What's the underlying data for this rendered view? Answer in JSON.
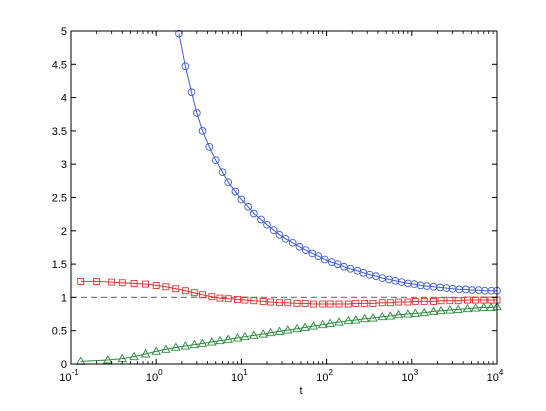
{
  "chart_data": {
    "type": "line",
    "xscale": "log",
    "xlabel": "t",
    "ylabel": "",
    "title": "",
    "xlim": [
      0.1,
      10000
    ],
    "ylim": [
      0,
      5
    ],
    "grid": false,
    "legend": "none",
    "xticks": [
      {
        "value": 0.1,
        "base": "10",
        "exp": "-1"
      },
      {
        "value": 1,
        "base": "10",
        "exp": "0"
      },
      {
        "value": 10,
        "base": "10",
        "exp": "1"
      },
      {
        "value": 100,
        "base": "10",
        "exp": "2"
      },
      {
        "value": 1000,
        "base": "10",
        "exp": "3"
      },
      {
        "value": 10000,
        "base": "10",
        "exp": "4"
      }
    ],
    "yticks": [
      {
        "value": 0,
        "label": "0"
      },
      {
        "value": 0.5,
        "label": "0.5"
      },
      {
        "value": 1,
        "label": "1"
      },
      {
        "value": 1.5,
        "label": "1.5"
      },
      {
        "value": 2,
        "label": "2"
      },
      {
        "value": 2.5,
        "label": "2.5"
      },
      {
        "value": 3,
        "label": "3"
      },
      {
        "value": 3.5,
        "label": "3.5"
      },
      {
        "value": 4,
        "label": "4"
      },
      {
        "value": 4.5,
        "label": "4.5"
      },
      {
        "value": 5,
        "label": "5"
      }
    ],
    "reference_line": {
      "y": 1,
      "color": "#808080",
      "style": "dashed"
    },
    "series": [
      {
        "color": "#3b5bdb",
        "marker": "circle",
        "x": [
          1.85,
          2.2,
          2.6,
          3.0,
          3.5,
          4.2,
          5.0,
          6.0,
          7.0,
          8.5,
          10,
          12,
          14,
          17,
          20,
          24,
          28,
          33,
          40,
          48,
          57,
          68,
          80,
          95,
          115,
          135,
          160,
          190,
          230,
          270,
          320,
          380,
          450,
          540,
          640,
          760,
          900,
          1070,
          1270,
          1500,
          1800,
          2150,
          2550,
          3000,
          3600,
          4300,
          5100,
          6100,
          7200,
          8600,
          10000
        ],
        "y": [
          4.96,
          4.47,
          4.08,
          3.77,
          3.5,
          3.26,
          3.06,
          2.88,
          2.73,
          2.59,
          2.47,
          2.36,
          2.26,
          2.17,
          2.09,
          2.01,
          1.94,
          1.88,
          1.82,
          1.76,
          1.71,
          1.66,
          1.62,
          1.57,
          1.53,
          1.5,
          1.46,
          1.43,
          1.4,
          1.37,
          1.34,
          1.32,
          1.29,
          1.27,
          1.25,
          1.23,
          1.21,
          1.2,
          1.18,
          1.17,
          1.16,
          1.15,
          1.14,
          1.13,
          1.12,
          1.12,
          1.11,
          1.11,
          1.1,
          1.1,
          1.1
        ]
      },
      {
        "color": "#e03131",
        "marker": "square",
        "x": [
          0.13,
          0.2,
          0.3,
          0.4,
          0.55,
          0.75,
          1.0,
          1.3,
          1.7,
          2.2,
          2.8,
          3.5,
          4.5,
          5.6,
          7.0,
          9.0,
          11,
          14,
          18,
          22,
          28,
          35,
          45,
          56,
          70,
          90,
          110,
          140,
          180,
          220,
          280,
          350,
          450,
          560,
          700,
          900,
          1100,
          1400,
          1800,
          2200,
          2800,
          3500,
          4500,
          5600,
          7000,
          8500,
          10000
        ],
        "y": [
          1.24,
          1.24,
          1.23,
          1.22,
          1.21,
          1.2,
          1.18,
          1.16,
          1.13,
          1.1,
          1.07,
          1.04,
          1.01,
          0.99,
          0.98,
          0.97,
          0.96,
          0.95,
          0.94,
          0.93,
          0.92,
          0.92,
          0.91,
          0.91,
          0.9,
          0.9,
          0.9,
          0.9,
          0.9,
          0.91,
          0.91,
          0.91,
          0.92,
          0.92,
          0.93,
          0.93,
          0.94,
          0.94,
          0.94,
          0.95,
          0.95,
          0.95,
          0.96,
          0.96,
          0.96,
          0.96,
          0.96
        ]
      },
      {
        "color": "#2b8a3e",
        "marker": "triangle",
        "x": [
          0.13,
          0.27,
          0.4,
          0.55,
          0.75,
          1.0,
          1.3,
          1.7,
          2.2,
          2.8,
          3.5,
          4.5,
          5.6,
          7.0,
          9.0,
          11,
          14,
          18,
          22,
          28,
          35,
          45,
          56,
          70,
          90,
          110,
          140,
          180,
          220,
          280,
          350,
          450,
          560,
          700,
          900,
          1100,
          1400,
          1800,
          2200,
          2800,
          3500,
          4500,
          5600,
          7000,
          8500,
          10000
        ],
        "y": [
          0.04,
          0.06,
          0.08,
          0.11,
          0.15,
          0.19,
          0.22,
          0.25,
          0.27,
          0.29,
          0.31,
          0.33,
          0.35,
          0.37,
          0.39,
          0.41,
          0.43,
          0.45,
          0.47,
          0.49,
          0.51,
          0.53,
          0.55,
          0.57,
          0.59,
          0.61,
          0.63,
          0.65,
          0.66,
          0.68,
          0.69,
          0.71,
          0.72,
          0.74,
          0.75,
          0.76,
          0.77,
          0.79,
          0.8,
          0.81,
          0.82,
          0.83,
          0.84,
          0.85,
          0.85,
          0.86
        ]
      }
    ]
  }
}
